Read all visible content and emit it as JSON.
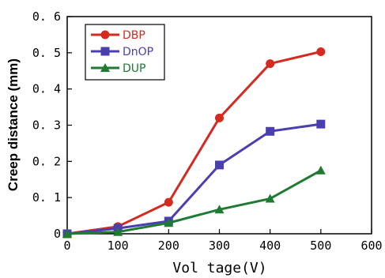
{
  "chart_data": {
    "type": "line",
    "title": "",
    "xlabel": "Vol tage(V)",
    "ylabel": "Creep distance (mm)",
    "xlim": [
      0,
      600
    ],
    "ylim": [
      0,
      0.6
    ],
    "xticks": [
      0,
      100,
      200,
      300,
      400,
      500,
      600
    ],
    "yticks": [
      0,
      0.1,
      0.2,
      0.3,
      0.4,
      0.5,
      0.6
    ],
    "xtick_labels": [
      "0",
      "100",
      "200",
      "300",
      "400",
      "500",
      "600"
    ],
    "ytick_labels": [
      "0",
      "0. 1",
      "0. 2",
      "0. 3",
      "0. 4",
      "0. 5",
      "0. 6"
    ],
    "grid": false,
    "legend_position": "top-left",
    "series": [
      {
        "name": "DBP",
        "color": "#d42a20",
        "marker": "circle",
        "x": [
          0,
          100,
          200,
          300,
          400,
          500
        ],
        "y": [
          0,
          0.02,
          0.087,
          0.32,
          0.47,
          0.503
        ]
      },
      {
        "name": "DnOP",
        "color": "#4a3fb0",
        "marker": "square",
        "x": [
          0,
          100,
          200,
          300,
          400,
          500
        ],
        "y": [
          0,
          0.015,
          0.035,
          0.19,
          0.283,
          0.303
        ]
      },
      {
        "name": "DUP",
        "color": "#1f7a32",
        "marker": "triangle",
        "x": [
          0,
          100,
          200,
          300,
          400,
          500
        ],
        "y": [
          0,
          0.005,
          0.03,
          0.067,
          0.097,
          0.175
        ]
      }
    ]
  }
}
